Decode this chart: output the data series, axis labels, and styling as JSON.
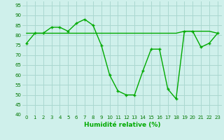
{
  "title": "",
  "xlabel": "Humidité relative (%)",
  "ylabel": "",
  "bg_color": "#cff0eb",
  "grid_color": "#aad8d0",
  "line_color": "#00aa00",
  "marker_color": "#00aa00",
  "xlim": [
    -0.5,
    23.5
  ],
  "ylim": [
    40,
    97
  ],
  "yticks": [
    40,
    45,
    50,
    55,
    60,
    65,
    70,
    75,
    80,
    85,
    90,
    95
  ],
  "xticks": [
    0,
    1,
    2,
    3,
    4,
    5,
    6,
    7,
    8,
    9,
    10,
    11,
    12,
    13,
    14,
    15,
    16,
    17,
    18,
    19,
    20,
    21,
    22,
    23
  ],
  "curve1": [
    76,
    81,
    81,
    84,
    84,
    82,
    86,
    88,
    85,
    75,
    60,
    52,
    50,
    50,
    62,
    73,
    73,
    53,
    48,
    82,
    82,
    74,
    76,
    81
  ],
  "curve2": [
    81,
    81,
    81,
    81,
    81,
    81,
    81,
    81,
    81,
    81,
    81,
    81,
    81,
    81,
    81,
    81,
    81,
    81,
    81,
    82,
    82,
    82,
    82,
    81
  ]
}
